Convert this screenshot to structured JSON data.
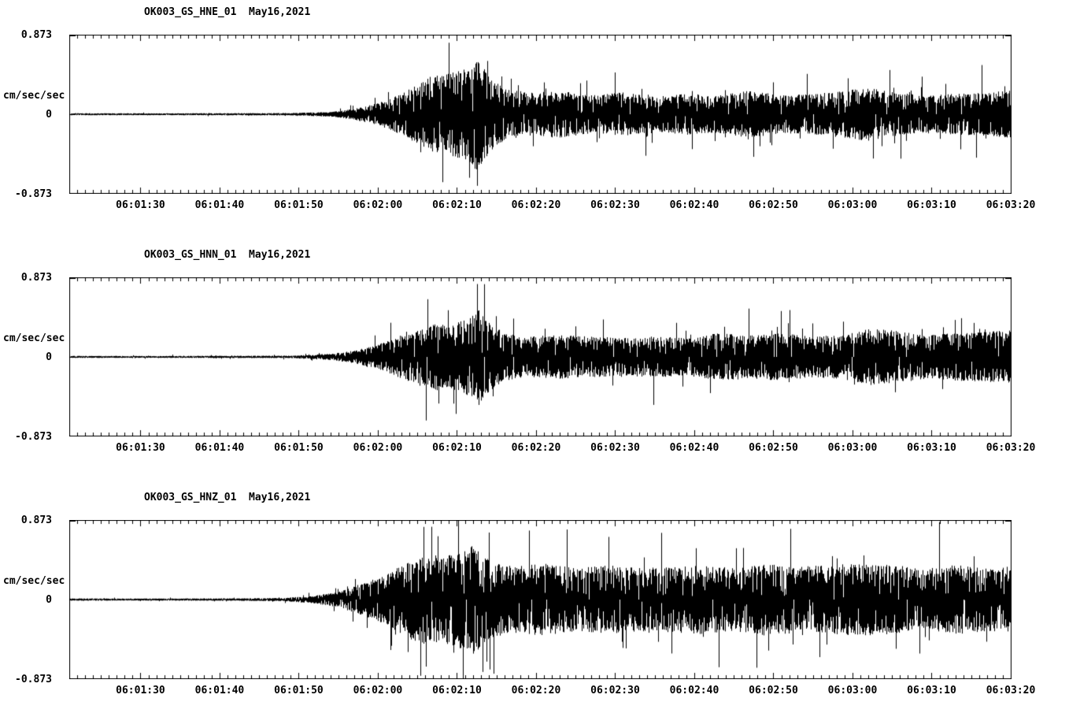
{
  "page": {
    "background": "#ffffff",
    "foreground": "#000000"
  },
  "chart_data": [
    {
      "type": "line",
      "kind": "seismogram-waveform",
      "title": "OK003_GS_HNE_01  May16,2021",
      "station": "OK003_GS_HNE_01",
      "date": "May16,2021",
      "ylabel": "cm/sec/sec",
      "ytick_labels": [
        "0.873",
        "0",
        "-0.873"
      ],
      "ylim": [
        -0.873,
        0.873
      ],
      "xlabel": "",
      "duration_seconds": 119,
      "xtick_seconds": [
        9,
        19,
        29,
        39,
        49,
        59,
        69,
        79,
        89,
        99,
        109,
        119
      ],
      "xtick_labels": [
        "06:01:30",
        "06:01:40",
        "06:01:50",
        "06:02:00",
        "06:02:10",
        "06:02:20",
        "06:02:30",
        "06:02:40",
        "06:02:50",
        "06:03:00",
        "06:03:10",
        "06:03:20"
      ],
      "trace_color": "#000000",
      "grid": false,
      "legend": null,
      "seed": 101,
      "envelope": [
        [
          0,
          0.013
        ],
        [
          10,
          0.012
        ],
        [
          20,
          0.013
        ],
        [
          28,
          0.015
        ],
        [
          33,
          0.03
        ],
        [
          36,
          0.07
        ],
        [
          39,
          0.14
        ],
        [
          42,
          0.26
        ],
        [
          44,
          0.38
        ],
        [
          46,
          0.5
        ],
        [
          48,
          0.52
        ],
        [
          50,
          0.58
        ],
        [
          51.5,
          0.72
        ],
        [
          53,
          0.5
        ],
        [
          55,
          0.32
        ],
        [
          58,
          0.28
        ],
        [
          62,
          0.3
        ],
        [
          66,
          0.24
        ],
        [
          70,
          0.28
        ],
        [
          74,
          0.22
        ],
        [
          78,
          0.26
        ],
        [
          82,
          0.24
        ],
        [
          86,
          0.3
        ],
        [
          90,
          0.24
        ],
        [
          94,
          0.26
        ],
        [
          98,
          0.3
        ],
        [
          101,
          0.34
        ],
        [
          104,
          0.28
        ],
        [
          108,
          0.24
        ],
        [
          112,
          0.26
        ],
        [
          116,
          0.28
        ],
        [
          119,
          0.3
        ]
      ]
    },
    {
      "type": "line",
      "kind": "seismogram-waveform",
      "title": "OK003_GS_HNN_01  May16,2021",
      "station": "OK003_GS_HNN_01",
      "date": "May16,2021",
      "ylabel": "cm/sec/sec",
      "ytick_labels": [
        "0.873",
        "0",
        "-0.873"
      ],
      "ylim": [
        -0.873,
        0.873
      ],
      "xlabel": "",
      "duration_seconds": 119,
      "xtick_seconds": [
        9,
        19,
        29,
        39,
        49,
        59,
        69,
        79,
        89,
        99,
        109,
        119
      ],
      "xtick_labels": [
        "06:01:30",
        "06:01:40",
        "06:01:50",
        "06:02:00",
        "06:02:10",
        "06:02:20",
        "06:02:30",
        "06:02:40",
        "06:02:50",
        "06:03:00",
        "06:03:10",
        "06:03:20"
      ],
      "trace_color": "#000000",
      "grid": false,
      "legend": null,
      "seed": 202,
      "envelope": [
        [
          0,
          0.013
        ],
        [
          10,
          0.012
        ],
        [
          20,
          0.014
        ],
        [
          28,
          0.016
        ],
        [
          33,
          0.04
        ],
        [
          36,
          0.08
        ],
        [
          39,
          0.16
        ],
        [
          42,
          0.28
        ],
        [
          44,
          0.34
        ],
        [
          46,
          0.42
        ],
        [
          48,
          0.4
        ],
        [
          50,
          0.48
        ],
        [
          51.5,
          0.62
        ],
        [
          53,
          0.44
        ],
        [
          55,
          0.3
        ],
        [
          58,
          0.26
        ],
        [
          62,
          0.28
        ],
        [
          66,
          0.26
        ],
        [
          70,
          0.24
        ],
        [
          74,
          0.26
        ],
        [
          78,
          0.24
        ],
        [
          82,
          0.3
        ],
        [
          86,
          0.28
        ],
        [
          90,
          0.3
        ],
        [
          94,
          0.26
        ],
        [
          98,
          0.28
        ],
        [
          101,
          0.36
        ],
        [
          104,
          0.34
        ],
        [
          108,
          0.28
        ],
        [
          112,
          0.3
        ],
        [
          116,
          0.32
        ],
        [
          119,
          0.34
        ]
      ]
    },
    {
      "type": "line",
      "kind": "seismogram-waveform",
      "title": "OK003_GS_HNZ_01  May16,2021",
      "station": "OK003_GS_HNZ_01",
      "date": "May16,2021",
      "ylabel": "cm/sec/sec",
      "ytick_labels": [
        "0.873",
        "0",
        "-0.873"
      ],
      "ylim": [
        -0.873,
        0.873
      ],
      "xlabel": "",
      "duration_seconds": 119,
      "xtick_seconds": [
        9,
        19,
        29,
        39,
        49,
        59,
        69,
        79,
        89,
        99,
        109,
        119
      ],
      "xtick_labels": [
        "06:01:30",
        "06:01:40",
        "06:01:50",
        "06:02:00",
        "06:02:10",
        "06:02:20",
        "06:02:30",
        "06:02:40",
        "06:02:50",
        "06:03:00",
        "06:03:10",
        "06:03:20"
      ],
      "trace_color": "#000000",
      "grid": false,
      "legend": null,
      "seed": 303,
      "envelope": [
        [
          0,
          0.014
        ],
        [
          10,
          0.013
        ],
        [
          20,
          0.015
        ],
        [
          27,
          0.02
        ],
        [
          31,
          0.05
        ],
        [
          34,
          0.1
        ],
        [
          37,
          0.2
        ],
        [
          40,
          0.32
        ],
        [
          43,
          0.5
        ],
        [
          45,
          0.58
        ],
        [
          47,
          0.55
        ],
        [
          49,
          0.6
        ],
        [
          51,
          0.7
        ],
        [
          53,
          0.5
        ],
        [
          56,
          0.42
        ],
        [
          60,
          0.46
        ],
        [
          64,
          0.4
        ],
        [
          68,
          0.44
        ],
        [
          72,
          0.4
        ],
        [
          76,
          0.42
        ],
        [
          80,
          0.44
        ],
        [
          84,
          0.4
        ],
        [
          88,
          0.46
        ],
        [
          92,
          0.42
        ],
        [
          96,
          0.44
        ],
        [
          100,
          0.46
        ],
        [
          104,
          0.44
        ],
        [
          108,
          0.4
        ],
        [
          112,
          0.44
        ],
        [
          116,
          0.4
        ],
        [
          119,
          0.42
        ]
      ]
    }
  ]
}
